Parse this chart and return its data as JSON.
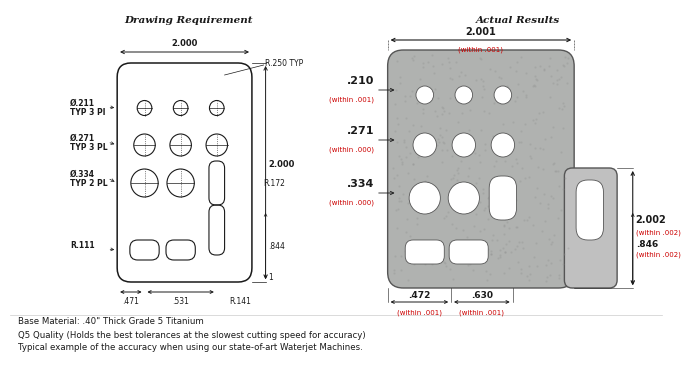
{
  "bg_color": "#ffffff",
  "title_left": "Drawing Requirement",
  "title_right": "Actual Results",
  "footer_lines": [
    "Base Material: .40\" Thick Grade 5 Titanium",
    "Q5 Quality (Holds the best tolerances at the slowest cutting speed for accuracy)",
    "Typical example of the accuracy when using our state-of-art Waterjet Machines."
  ],
  "black": "#1a1a1a",
  "red": "#cc0000",
  "part_fill": "#b0b2b0",
  "part_edge": "#555555",
  "hole_fill": "#ffffff"
}
